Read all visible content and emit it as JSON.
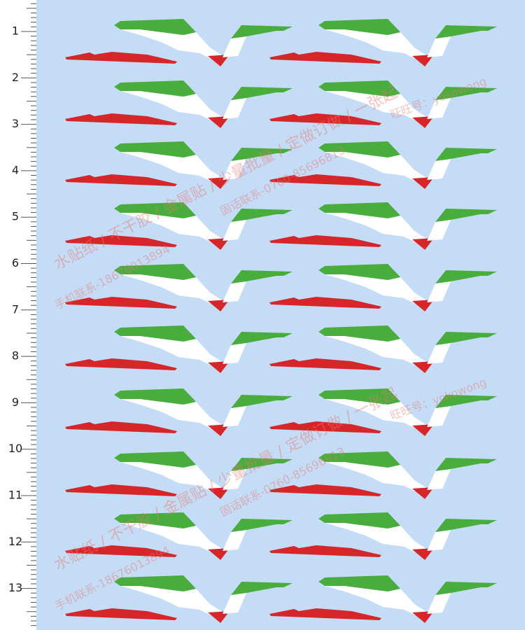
{
  "ruler": {
    "labels": [
      "1",
      "2",
      "3",
      "4",
      "5",
      "6",
      "7",
      "8",
      "9",
      "10",
      "11",
      "12",
      "13"
    ]
  },
  "watermark": {
    "services": "水贴纸 / 不干胶 / 金属贴 / 少量批量 / 定做订做 / 一张起",
    "mobile": "手机联系-18676013894",
    "phone": "固话联系-0760-85696813",
    "wangwang": "旺旺号：yokowong"
  }
}
